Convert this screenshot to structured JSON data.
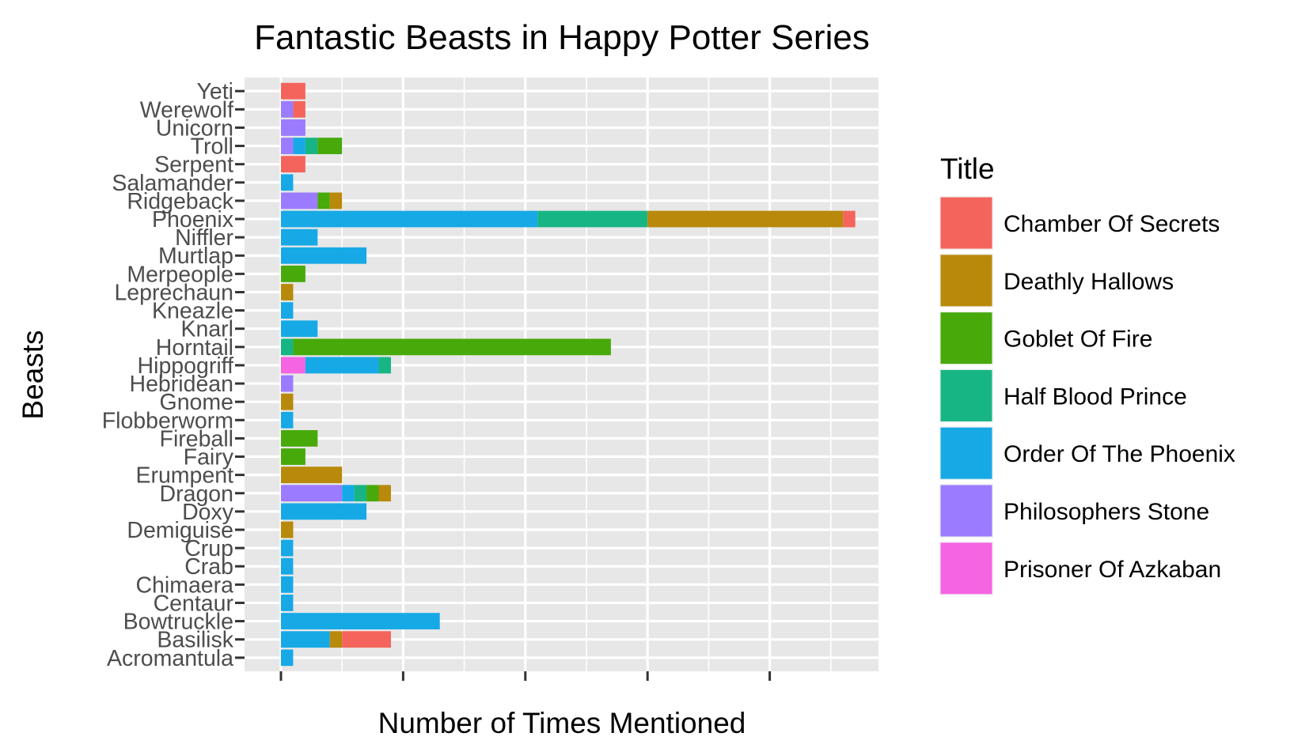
{
  "chart_data": {
    "type": "bar",
    "orientation": "horizontal",
    "stacked": true,
    "title": "Fantastic Beasts in Happy Potter Series",
    "xlabel": "Number of Times Mentioned",
    "ylabel": "Beasts",
    "legend_title": "Title",
    "legend_position": "right",
    "grid": true,
    "xlim": [
      -2,
      47
    ],
    "x_tick_values": [
      0,
      10,
      20,
      30,
      40
    ],
    "x_tick_labels_visible": false,
    "categories": [
      "Acromantula",
      "Basilisk",
      "Bowtruckle",
      "Centaur",
      "Chimaera",
      "Crab",
      "Crup",
      "Demiguise",
      "Doxy",
      "Dragon",
      "Erumpent",
      "Fairy",
      "Fireball",
      "Flobberworm",
      "Gnome",
      "Hebridean",
      "Hippogriff",
      "Horntail",
      "Knarl",
      "Kneazle",
      "Leprechaun",
      "Merpeople",
      "Murtlap",
      "Niffler",
      "Phoenix",
      "Ridgeback",
      "Salamander",
      "Serpent",
      "Troll",
      "Unicorn",
      "Werewolf",
      "Yeti"
    ],
    "series": [
      {
        "name": "Prisoner Of Azkaban",
        "color": "#F564E3",
        "values": [
          0,
          0,
          0,
          0,
          0,
          0,
          0,
          0,
          0,
          0,
          0,
          0,
          0,
          0,
          0,
          0,
          2,
          0,
          0,
          0,
          0,
          0,
          0,
          0,
          0,
          0,
          0,
          0,
          0,
          0,
          0,
          0
        ]
      },
      {
        "name": "Philosophers Stone",
        "color": "#9B7BFF",
        "values": [
          0,
          0,
          0,
          0,
          0,
          0,
          0,
          0,
          0,
          5,
          0,
          0,
          0,
          0,
          0,
          1,
          0,
          0,
          0,
          0,
          0,
          0,
          0,
          0,
          0,
          3,
          0,
          0,
          1,
          2,
          1,
          0
        ]
      },
      {
        "name": "Order Of The Phoenix",
        "color": "#17A9E6",
        "values": [
          1,
          4,
          13,
          1,
          1,
          1,
          1,
          0,
          7,
          1,
          0,
          0,
          0,
          1,
          0,
          0,
          6,
          0,
          3,
          1,
          0,
          0,
          7,
          3,
          21,
          0,
          1,
          0,
          1,
          0,
          0,
          0
        ]
      },
      {
        "name": "Half Blood Prince",
        "color": "#18B584",
        "values": [
          0,
          0,
          0,
          0,
          0,
          0,
          0,
          0,
          0,
          1,
          0,
          0,
          0,
          0,
          0,
          0,
          1,
          1,
          0,
          0,
          0,
          0,
          0,
          0,
          9,
          0,
          0,
          0,
          1,
          0,
          0,
          0
        ]
      },
      {
        "name": "Goblet Of Fire",
        "color": "#47A90A",
        "values": [
          0,
          0,
          0,
          0,
          0,
          0,
          0,
          0,
          0,
          1,
          0,
          2,
          3,
          0,
          0,
          0,
          0,
          26,
          0,
          0,
          0,
          2,
          0,
          0,
          0,
          1,
          0,
          0,
          2,
          0,
          0,
          0
        ]
      },
      {
        "name": "Deathly Hallows",
        "color": "#B8890A",
        "values": [
          0,
          1,
          0,
          0,
          0,
          0,
          0,
          1,
          0,
          1,
          5,
          0,
          0,
          0,
          1,
          0,
          0,
          0,
          0,
          0,
          1,
          0,
          0,
          0,
          16,
          1,
          0,
          0,
          0,
          0,
          0,
          0
        ]
      },
      {
        "name": "Chamber Of Secrets",
        "color": "#F4645C",
        "values": [
          0,
          4,
          0,
          0,
          0,
          0,
          0,
          0,
          0,
          0,
          0,
          0,
          0,
          0,
          0,
          0,
          0,
          0,
          0,
          0,
          0,
          0,
          0,
          0,
          1,
          0,
          0,
          2,
          0,
          0,
          1,
          2
        ]
      }
    ],
    "legend_order": [
      "Chamber Of Secrets",
      "Deathly Hallows",
      "Goblet Of Fire",
      "Half Blood Prince",
      "Order Of The Phoenix",
      "Philosophers Stone",
      "Prisoner Of Azkaban"
    ],
    "panel_background": "#E7E7E7",
    "grid_color": "#FFFFFF"
  }
}
